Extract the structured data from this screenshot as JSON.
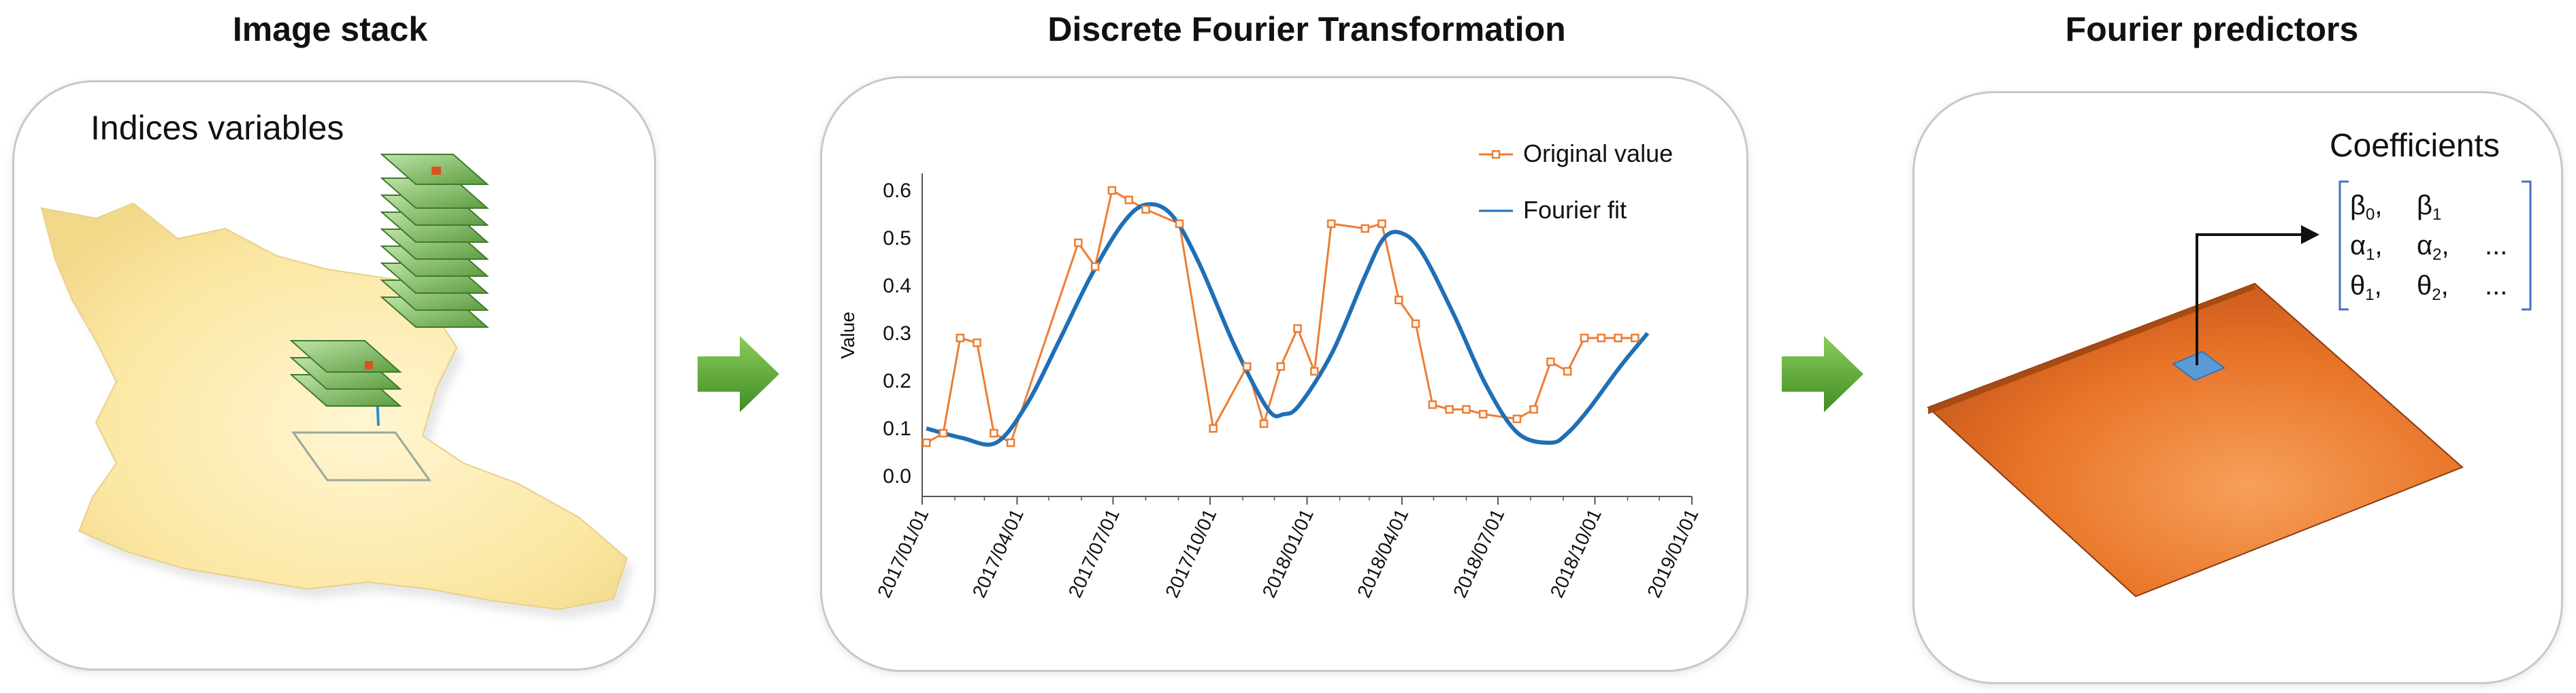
{
  "panels": {
    "image_stack": {
      "title": "Image stack",
      "label": "Indices variables"
    },
    "dft": {
      "title": "Discrete Fourier Transformation"
    },
    "fourier_predictors": {
      "title": "Fourier predictors",
      "label": "Coefficients",
      "matrix": {
        "row1": [
          "β0,",
          "β1"
        ],
        "row2": [
          "α1,",
          "α2,",
          "..."
        ],
        "row3": [
          "θ1,",
          "θ2,",
          "..."
        ]
      }
    }
  },
  "colors": {
    "original": "#ED7D31",
    "fourier": "#1F6FB5",
    "arrow": "#5FA83A",
    "surface": "#E06A1E",
    "cell": "#5B9BD5",
    "bracket": "#4472C4"
  },
  "chart_data": {
    "type": "line",
    "ylabel": "Value",
    "xlabel": "",
    "ylim": [
      0.0,
      0.6
    ],
    "y_ticks": [
      "0.0",
      "0.1",
      "0.2",
      "0.3",
      "0.4",
      "0.5",
      "0.6"
    ],
    "x_ticks": [
      "2017/01/01",
      "2017/04/01",
      "2017/07/01",
      "2017/10/01",
      "2018/01/01",
      "2018/04/01",
      "2018/07/01",
      "2018/10/01",
      "2019/01/01"
    ],
    "legend_position": "top-right",
    "series": [
      {
        "name": "Original value",
        "marker": "square",
        "x": [
          "2017/01/05",
          "2017/01/21",
          "2017/02/06",
          "2017/02/22",
          "2017/03/10",
          "2017/03/26",
          "2017/05/29",
          "2017/06/14",
          "2017/06/30",
          "2017/07/16",
          "2017/08/01",
          "2017/09/02",
          "2017/10/04",
          "2017/11/05",
          "2017/11/21",
          "2017/12/07",
          "2017/12/23",
          "2018/01/08",
          "2018/01/24",
          "2018/02/25",
          "2018/03/13",
          "2018/03/29",
          "2018/04/14",
          "2018/04/30",
          "2018/05/16",
          "2018/06/01",
          "2018/06/17",
          "2018/07/19",
          "2018/08/04",
          "2018/08/20",
          "2018/09/05",
          "2018/09/21",
          "2018/10/07",
          "2018/10/23",
          "2018/11/08"
        ],
        "y": [
          0.07,
          0.09,
          0.29,
          0.28,
          0.09,
          0.07,
          0.49,
          0.44,
          0.6,
          0.58,
          0.56,
          0.53,
          0.1,
          0.23,
          0.11,
          0.23,
          0.31,
          0.22,
          0.53,
          0.52,
          0.53,
          0.37,
          0.32,
          0.15,
          0.14,
          0.14,
          0.13,
          0.12,
          0.14,
          0.24,
          0.22,
          0.29,
          0.29,
          0.29,
          0.29
        ]
      },
      {
        "name": "Fourier fit",
        "x": [
          "2017/01/05",
          "2017/02/08",
          "2017/03/12",
          "2017/04/10",
          "2017/05/10",
          "2017/06/10",
          "2017/07/10",
          "2017/08/01",
          "2017/08/25",
          "2017/09/20",
          "2017/10/25",
          "2017/11/25",
          "2017/12/10",
          "2017/12/25",
          "2018/01/25",
          "2018/02/25",
          "2018/03/15",
          "2018/04/01",
          "2018/04/20",
          "2018/05/20",
          "2018/06/20",
          "2018/07/20",
          "2018/08/20",
          "2018/09/05",
          "2018/09/25",
          "2018/10/25",
          "2018/11/20"
        ],
        "y": [
          0.1,
          0.08,
          0.07,
          0.15,
          0.28,
          0.42,
          0.53,
          0.57,
          0.55,
          0.45,
          0.27,
          0.14,
          0.13,
          0.15,
          0.26,
          0.42,
          0.5,
          0.51,
          0.47,
          0.34,
          0.19,
          0.09,
          0.07,
          0.09,
          0.14,
          0.23,
          0.3
        ]
      }
    ]
  }
}
